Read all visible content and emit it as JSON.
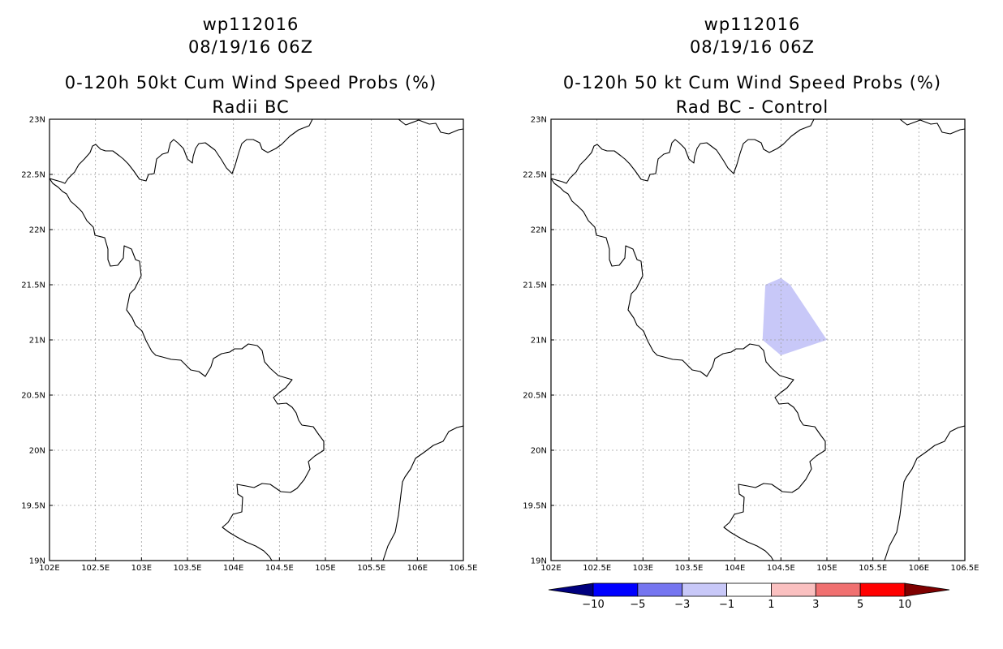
{
  "panels": [
    {
      "title_line1": "wp112016",
      "title_line2": "08/19/16 06Z",
      "title_line3": "0-120h 50kt Cum Wind Speed Probs (%)",
      "title_line4": "Radii BC",
      "x_ticks": [
        "102E",
        "102.5E",
        "103E",
        "103.5E",
        "104E",
        "104.5E",
        "105E",
        "105.5E",
        "106E",
        "106.5E"
      ],
      "y_ticks": [
        "23N",
        "22.5N",
        "22N",
        "21.5N",
        "21N",
        "20.5N",
        "20N",
        "19.5N",
        "19N"
      ]
    },
    {
      "title_line1": "wp112016",
      "title_line2": "08/19/16 06Z",
      "title_line3": "0-120h 50 kt Cum Wind Speed Probs (%)",
      "title_line4": "Rad BC - Control",
      "x_ticks": [
        "102E",
        "102.5E",
        "103E",
        "103.5E",
        "104E",
        "104.5E",
        "105E",
        "105.5E",
        "106E",
        "106.5E"
      ],
      "y_ticks": [
        "23N",
        "22.5N",
        "22N",
        "21.5N",
        "21N",
        "20.5N",
        "20N",
        "19.5N",
        "19N"
      ]
    }
  ],
  "map_extent": {
    "lon": [
      102,
      106.5
    ],
    "lat": [
      19,
      23
    ]
  },
  "shaded_region": {
    "category": "-3 to -1",
    "color": "#c8c8f8",
    "lonlat": [
      [
        104.33,
        21.5
      ],
      [
        104.5,
        21.56
      ],
      [
        104.6,
        21.5
      ],
      [
        105.0,
        21.0
      ],
      [
        104.5,
        20.86
      ],
      [
        104.3,
        21.0
      ]
    ]
  },
  "colorbar": {
    "colors": [
      "#00007f",
      "#0000ff",
      "#7575f0",
      "#c8c8f8",
      "#ffffff",
      "#fac0c0",
      "#f07070",
      "#ff0000",
      "#7f0000"
    ],
    "labels": [
      "-10",
      "-5",
      "-3",
      "-1",
      "1",
      "3",
      "5",
      "10"
    ]
  },
  "icons": [
    "coastline-border"
  ]
}
